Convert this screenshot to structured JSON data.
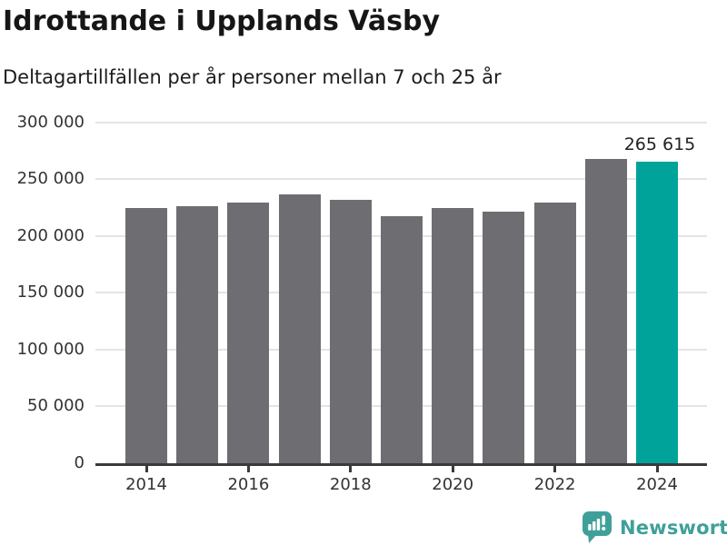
{
  "header": {
    "title": "Idrottande i Upplands Väsby",
    "subtitle": "Deltagartillfällen per år personer mellan 7 och 25 år"
  },
  "chart_data": {
    "type": "bar",
    "title": "Idrottande i Upplands Väsby",
    "subtitle": "Deltagartillfällen per år personer mellan 7 och 25 år",
    "xlabel": "",
    "ylabel": "",
    "categories": [
      "2014",
      "2015",
      "2016",
      "2017",
      "2018",
      "2019",
      "2020",
      "2021",
      "2022",
      "2023",
      "2024"
    ],
    "values": [
      224500,
      226000,
      229500,
      236500,
      232000,
      217500,
      224500,
      221000,
      229500,
      268000,
      265615
    ],
    "highlight_index": 10,
    "data_label": {
      "index": 10,
      "text": "265 615"
    },
    "ylim": [
      0,
      300000
    ],
    "yticks": [
      0,
      50000,
      100000,
      150000,
      200000,
      250000,
      300000
    ],
    "ytick_labels": [
      "0",
      "50 000",
      "100 000",
      "150 000",
      "200 000",
      "250 000",
      "300 000"
    ],
    "xtick_labels": [
      "2014",
      "2016",
      "2018",
      "2020",
      "2022",
      "2024"
    ],
    "grid": "horizontal",
    "legend": "none",
    "colors": {
      "bar_default": "#6e6e72",
      "bar_highlight": "#00a39a",
      "gridline": "#e4e4e4",
      "axis": "#3a3a3a",
      "tick_text": "#333333"
    }
  },
  "footer": {
    "brand": "Newsworthy",
    "logo_icon": "newsworthy-chart-bubble-icon",
    "brand_color": "#3fa09a"
  }
}
